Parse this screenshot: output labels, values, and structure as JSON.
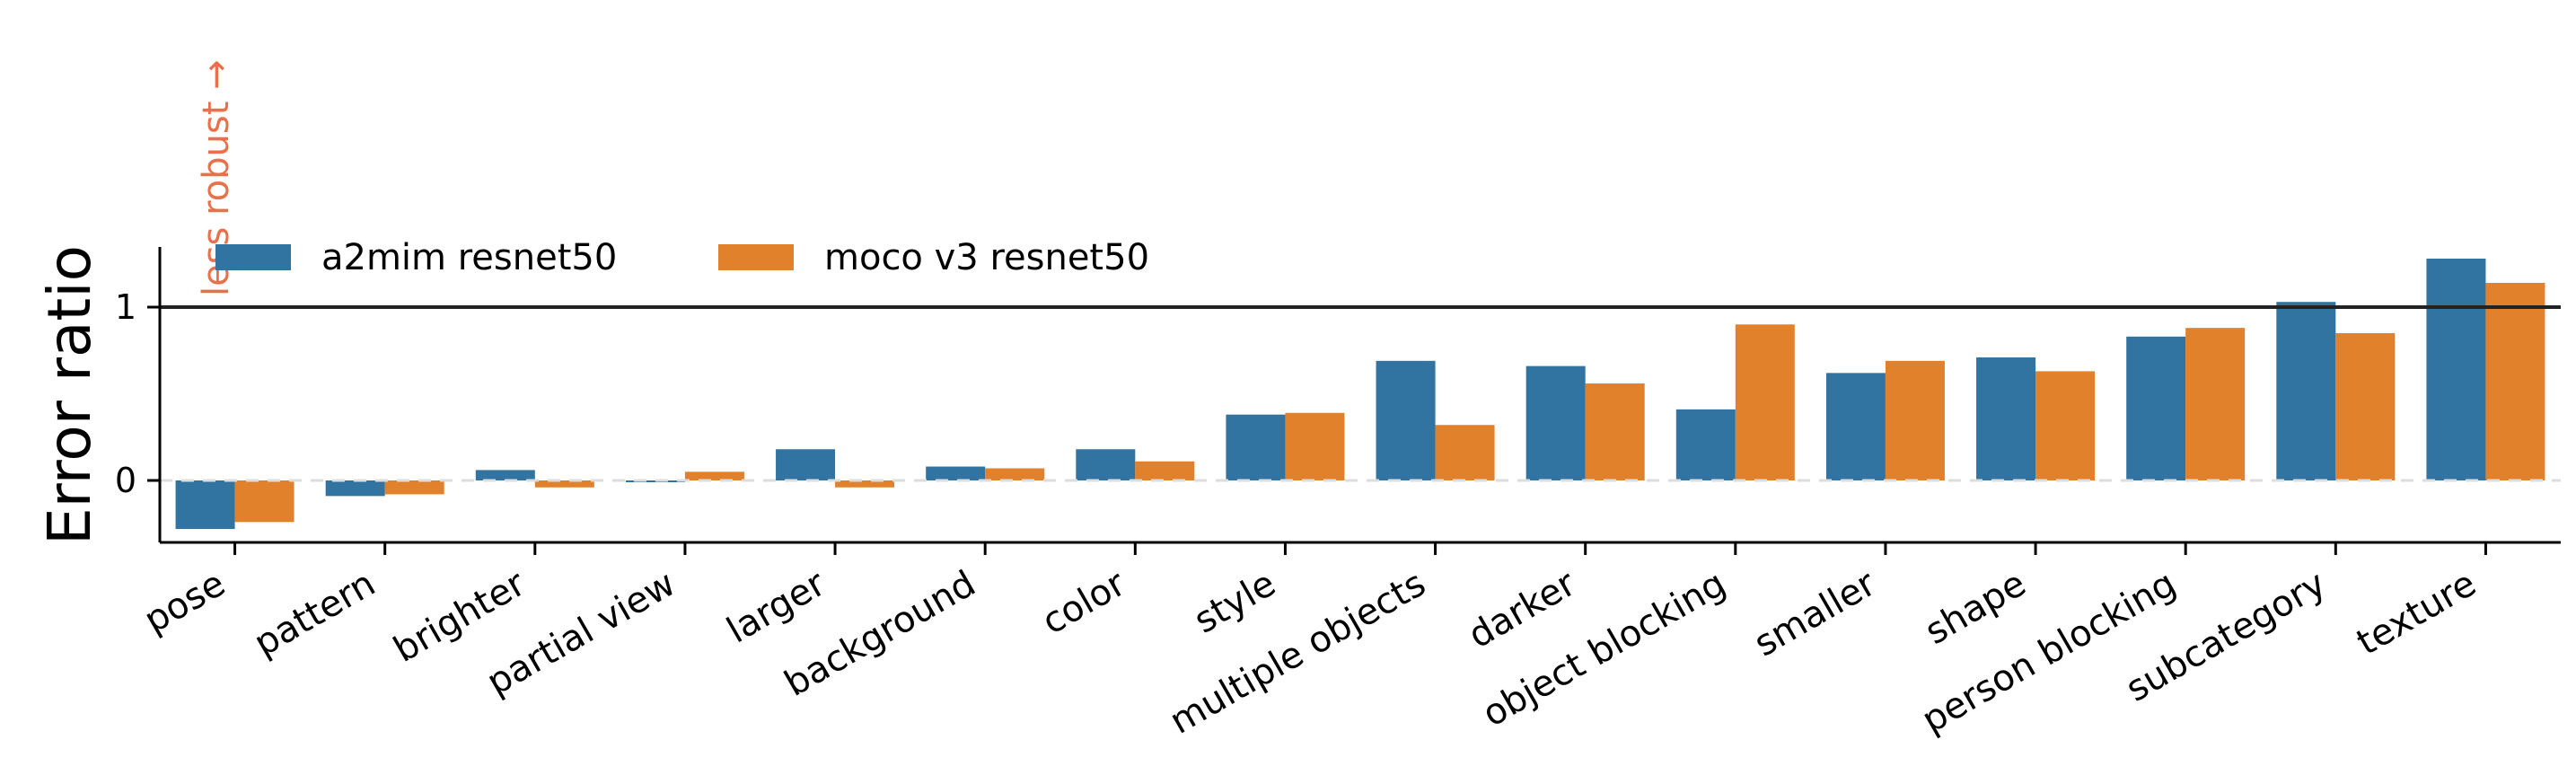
{
  "chart_data": {
    "type": "bar",
    "ylabel": "Error ratio",
    "annotation": "less robust →",
    "categories": [
      "pose",
      "pattern",
      "brighter",
      "partial view",
      "larger",
      "background",
      "color",
      "style",
      "multiple objects",
      "darker",
      "object blocking",
      "smaller",
      "shape",
      "person blocking",
      "subcategory",
      "texture"
    ],
    "series": [
      {
        "name": "a2mim resnet50",
        "color": "#3274a1",
        "values": [
          -0.28,
          -0.09,
          0.06,
          -0.01,
          0.18,
          0.08,
          0.18,
          0.38,
          0.69,
          0.66,
          0.41,
          0.62,
          0.71,
          0.83,
          1.03,
          1.28
        ]
      },
      {
        "name": "moco v3 resnet50",
        "color": "#e1812c",
        "values": [
          -0.24,
          -0.08,
          -0.04,
          0.05,
          -0.04,
          0.07,
          0.11,
          0.39,
          0.32,
          0.56,
          0.9,
          0.69,
          0.63,
          0.88,
          0.85,
          1.14
        ]
      }
    ],
    "yticks": [
      0,
      1
    ],
    "ylim": [
      -0.36,
      1.36
    ],
    "reference_line": 1,
    "zero_line": "dashed",
    "legend_position": "top-left"
  }
}
